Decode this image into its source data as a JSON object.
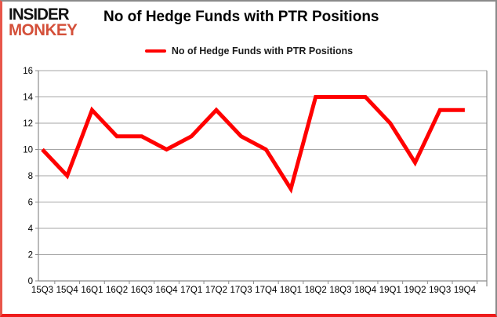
{
  "header": {
    "logo_line1": "INSIDER",
    "logo_line2": "MONKEY",
    "title": "No of Hedge Funds with PTR Positions"
  },
  "legend": {
    "label": "No of Hedge Funds with PTR Positions"
  },
  "colors": {
    "line": "#ff0000",
    "logo_accent": "#d4503a",
    "grid": "#a6a6a6",
    "axis": "#8c8c8c",
    "tick_text": "#000000"
  },
  "chart_data": {
    "type": "line",
    "title": "No of Hedge Funds with PTR Positions",
    "categories": [
      "15Q3",
      "15Q4",
      "16Q1",
      "16Q2",
      "16Q3",
      "16Q4",
      "17Q1",
      "17Q2",
      "17Q3",
      "17Q4",
      "18Q1",
      "18Q2",
      "18Q3",
      "18Q4",
      "19Q1",
      "19Q2",
      "19Q3",
      "19Q4"
    ],
    "series": [
      {
        "name": "No of Hedge Funds with PTR Positions",
        "color": "#ff0000",
        "values": [
          10,
          8,
          13,
          11,
          11,
          10,
          11,
          13,
          11,
          10,
          7,
          14,
          14,
          14,
          12,
          9,
          13,
          13
        ]
      }
    ],
    "xlabel": "",
    "ylabel": "",
    "ylim": [
      0,
      16
    ],
    "y_ticks": [
      0,
      2,
      4,
      6,
      8,
      10,
      12,
      14,
      16
    ],
    "grid": true,
    "legend_position": "top-center"
  }
}
